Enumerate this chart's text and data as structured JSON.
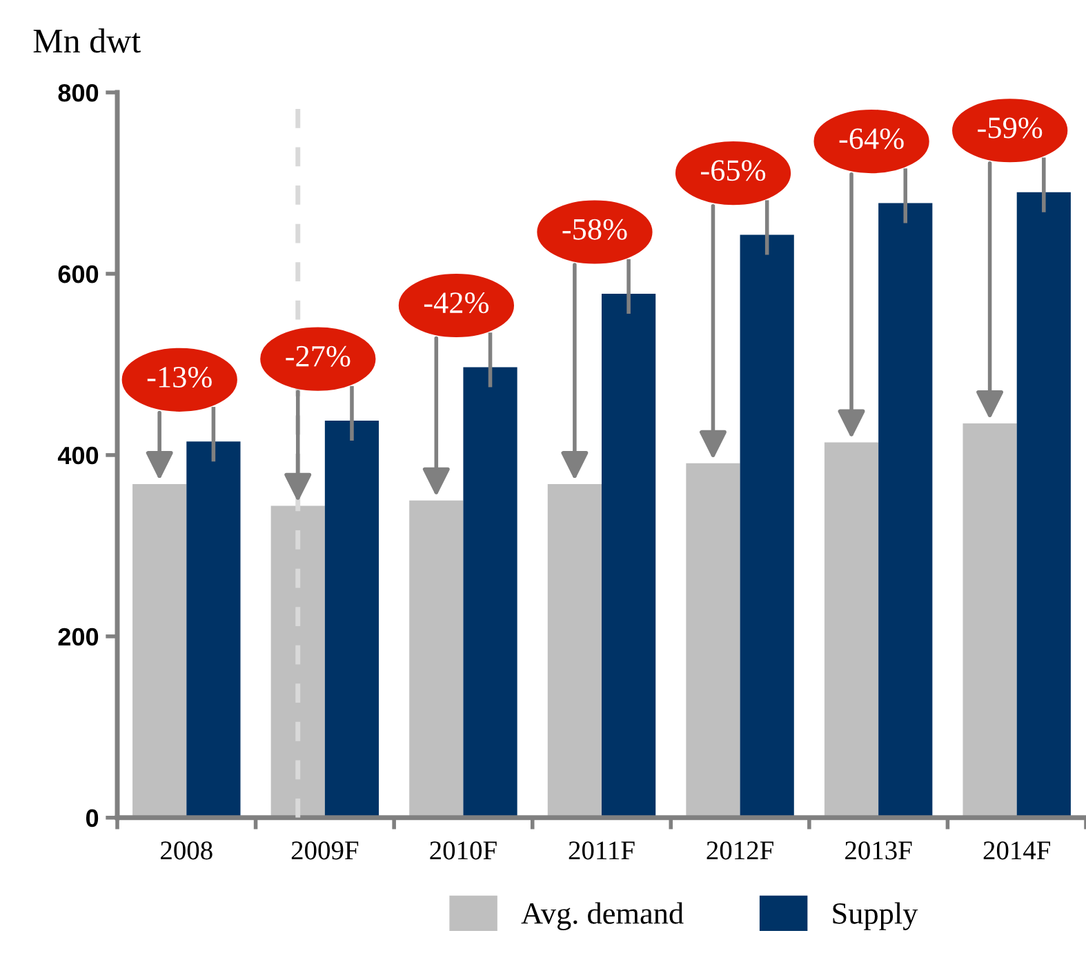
{
  "chart_data": {
    "type": "bar",
    "ylabel": "Mn dwt",
    "categories": [
      "2008",
      "2009F",
      "2010F",
      "2011F",
      "2012F",
      "2013F",
      "2014F"
    ],
    "series": [
      {
        "name": "Avg. demand",
        "color": "#bfbfbf",
        "values": [
          368,
          344,
          350,
          368,
          391,
          414,
          435
        ]
      },
      {
        "name": "Supply",
        "color": "#003366",
        "values": [
          415,
          438,
          497,
          578,
          643,
          678,
          690
        ]
      }
    ],
    "ylim": [
      0,
      800
    ],
    "yticks": [
      0,
      200,
      400,
      600,
      800
    ],
    "grid": false,
    "legend": "bottom",
    "ref_lines": [
      {
        "axis": "x",
        "value": "2009F",
        "color": "#d9d9d9",
        "line_style": "dashed"
      }
    ],
    "annotations": [
      {
        "text": "-13%",
        "x": "2008",
        "y": 415
      },
      {
        "text": "-27%",
        "x": "2009F",
        "y": 438
      },
      {
        "text": "-42%",
        "x": "2010F",
        "y": 497
      },
      {
        "text": "-58%",
        "x": "2011F",
        "y": 578
      },
      {
        "text": "-65%",
        "x": "2012F",
        "y": 643
      },
      {
        "text": "-64%",
        "x": "2013F",
        "y": 678
      },
      {
        "text": "-59%",
        "x": "2014F",
        "y": 690
      }
    ]
  }
}
